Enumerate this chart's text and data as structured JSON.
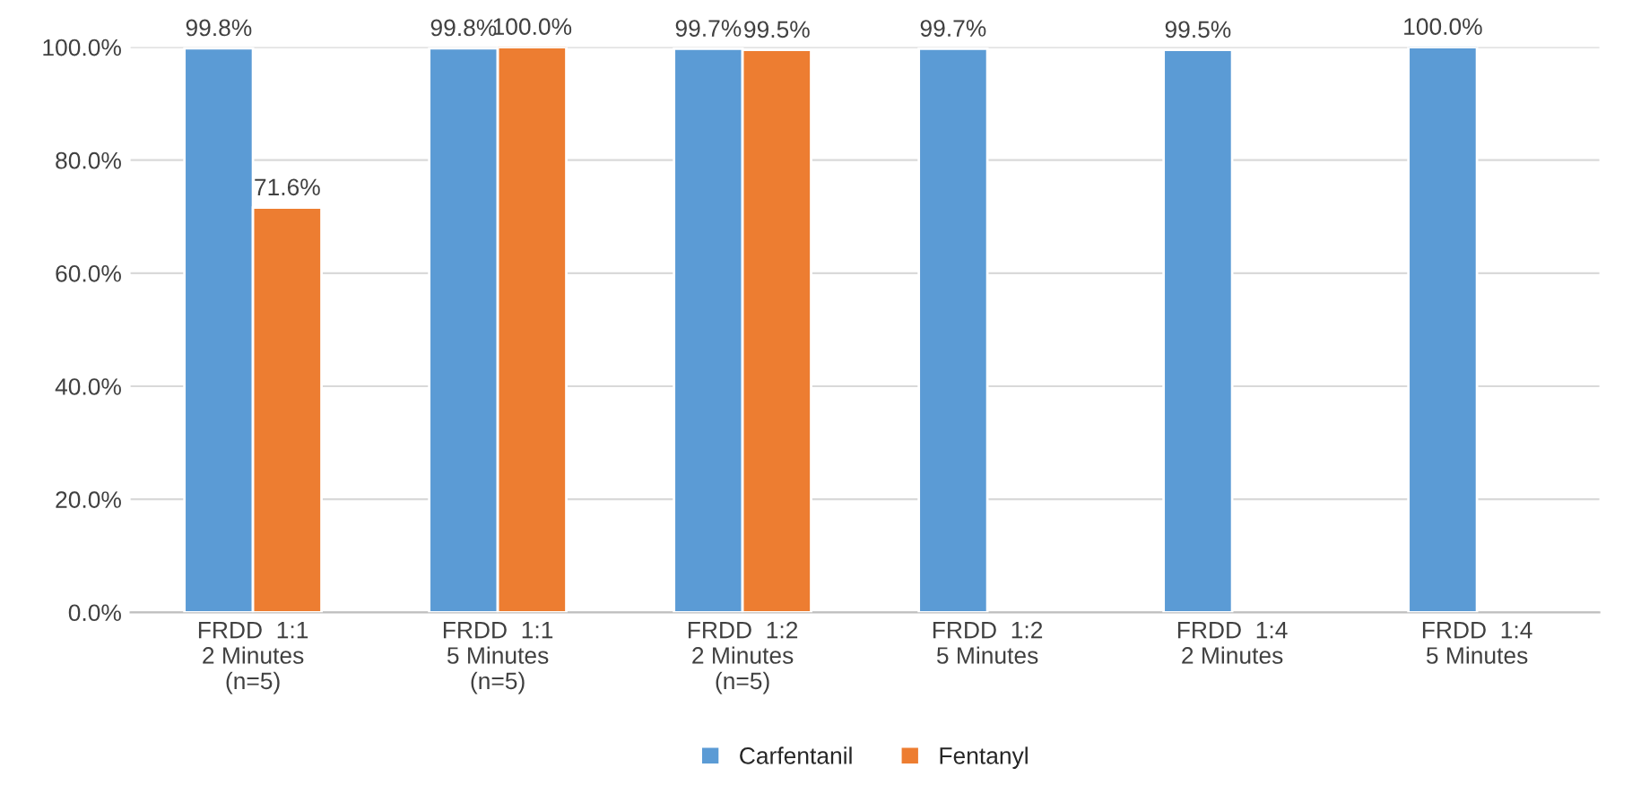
{
  "chart_data": {
    "type": "bar",
    "categories": [
      "FRDD  1:1\n2 Minutes\n(n=5)",
      "FRDD  1:1\n5 Minutes\n(n=5)",
      "FRDD  1:2\n2 Minutes\n(n=5)",
      "FRDD  1:2\n5 Minutes",
      "FRDD  1:4\n2 Minutes",
      "FRDD  1:4\n5 Minutes"
    ],
    "series": [
      {
        "name": "Carfentanil",
        "color": "#5b9bd5",
        "values": [
          99.8,
          99.8,
          99.7,
          99.7,
          99.5,
          100.0
        ],
        "value_labels": [
          "99.8%",
          "99.8%",
          "99.7%",
          "99.7%",
          "99.5%",
          "100.0%"
        ]
      },
      {
        "name": "Fentanyl",
        "color": "#ed7d31",
        "values": [
          71.6,
          100.0,
          99.5,
          null,
          null,
          null
        ],
        "value_labels": [
          "71.6%",
          "100.0%",
          "99.5%",
          null,
          null,
          null
        ]
      }
    ],
    "ylim": [
      0,
      100
    ],
    "yticks": [
      {
        "value": 0,
        "label": "0.0%"
      },
      {
        "value": 20,
        "label": "20.0%"
      },
      {
        "value": 40,
        "label": "40.0%"
      },
      {
        "value": 60,
        "label": "60.0%"
      },
      {
        "value": 80,
        "label": "80.0%"
      },
      {
        "value": 100,
        "label": "100.0%"
      }
    ],
    "grid": "y",
    "legend": "bottom"
  }
}
